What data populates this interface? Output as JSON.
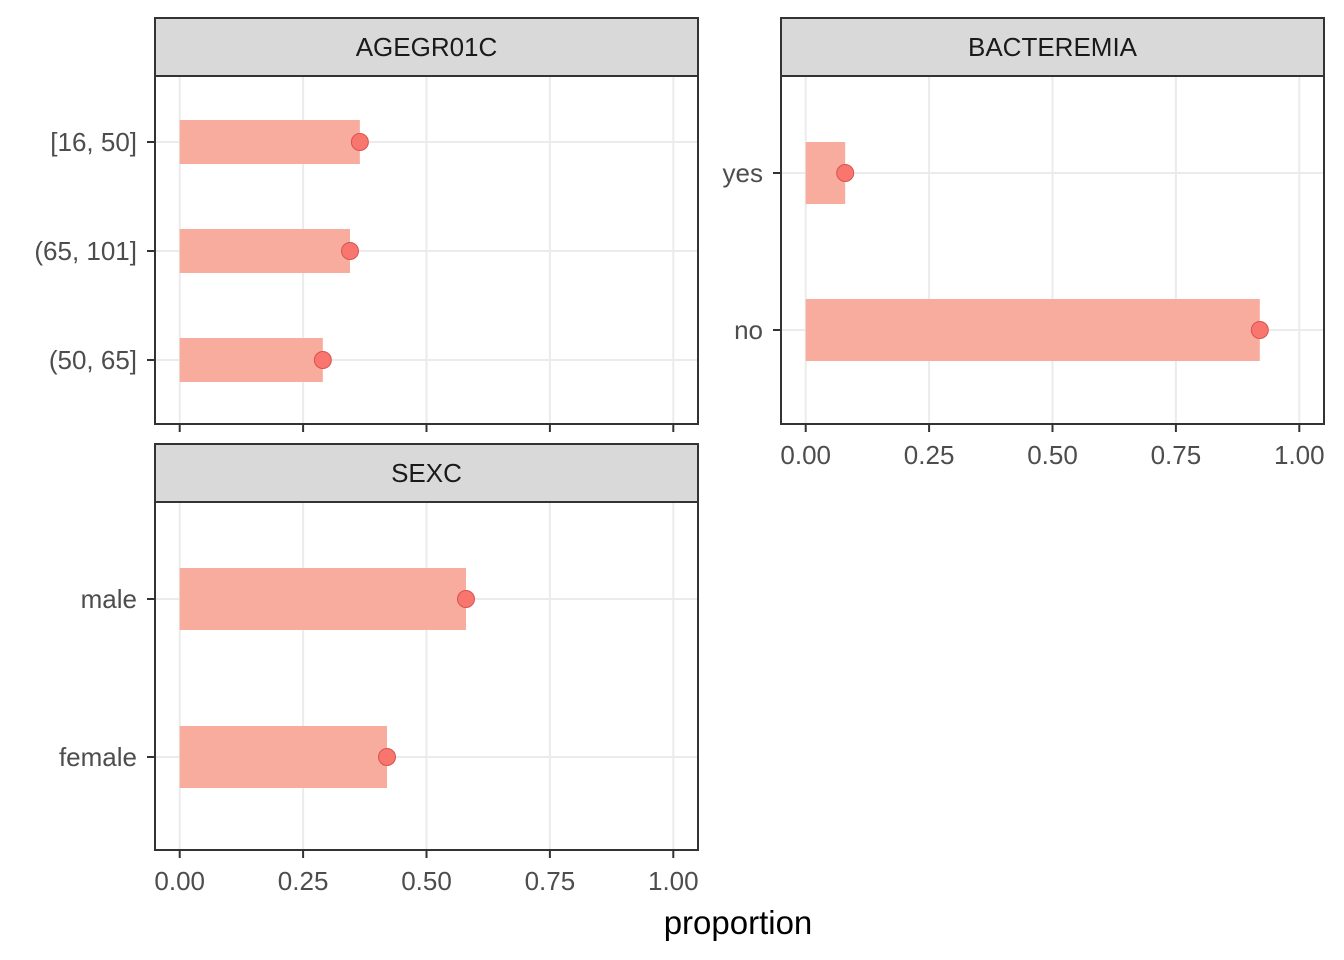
{
  "chart_data": [
    {
      "type": "bar",
      "title": "AGEGR01C",
      "categories": [
        "[16, 50]",
        "(65, 101]",
        "(50, 65]"
      ],
      "values": [
        0.365,
        0.345,
        0.29
      ],
      "points": [
        0.365,
        0.345,
        0.29
      ],
      "xlabel": "proportion",
      "ylabel": "",
      "xlim": [
        0,
        1
      ],
      "xticks": [
        "0.00",
        "0.25",
        "0.50",
        "0.75",
        "1.00"
      ],
      "grid": true
    },
    {
      "type": "bar",
      "title": "BACTEREMIA",
      "categories": [
        "yes",
        "no"
      ],
      "values": [
        0.08,
        0.92
      ],
      "points": [
        0.08,
        0.92
      ],
      "xlabel": "proportion",
      "ylabel": "",
      "xlim": [
        0,
        1
      ],
      "xticks": [
        "0.00",
        "0.25",
        "0.50",
        "0.75",
        "1.00"
      ],
      "grid": true
    },
    {
      "type": "bar",
      "title": "SEXC",
      "categories": [
        "male",
        "female"
      ],
      "values": [
        0.58,
        0.42
      ],
      "points": [
        0.58,
        0.42
      ],
      "xlabel": "proportion",
      "ylabel": "",
      "xlim": [
        0,
        1
      ],
      "xticks": [
        "0.00",
        "0.25",
        "0.50",
        "0.75",
        "1.00"
      ],
      "grid": true
    }
  ],
  "axis_title": "proportion",
  "colors": {
    "bar_fill": "#f8ac9e",
    "point_fill": "#f8766d",
    "point_stroke": "#d9534f",
    "strip_fill": "#d9d9d9",
    "panel_border": "#333333",
    "grid": "#ebebeb"
  }
}
